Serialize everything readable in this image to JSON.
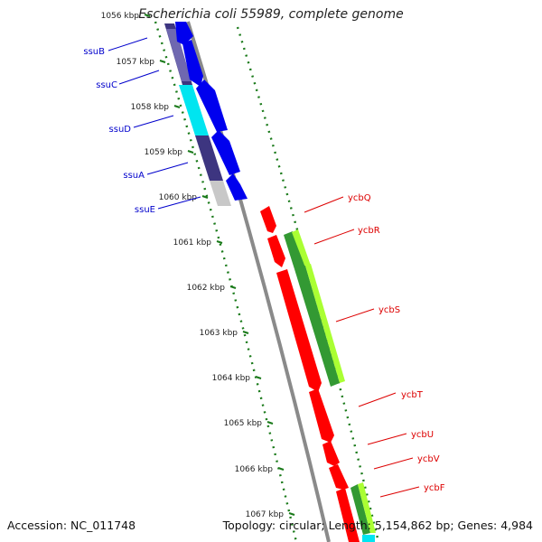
{
  "title": "Escherichia coli 55989, complete genome",
  "footer": {
    "accession": "Accession: NC_011748",
    "summary": "Topology: circular; Length: 5,154,862 bp; Genes: 4,984"
  },
  "colors": {
    "backbone": "#8a8a8a",
    "tick": "#1a7a1a",
    "left_label": "#0000cc",
    "right_label": "#dd0000",
    "cds_blue": "#0000ee",
    "cds_red": "#ff0000",
    "rna_green": "#339933",
    "rna_lime": "#aaff33",
    "track_navy": "#3d3580",
    "track_cyan": "#00e5f0",
    "track_grey": "#c8c8c8"
  },
  "ruler": {
    "unit": "kbp",
    "labels": [
      "1056 kbp",
      "1057 kbp",
      "1058 kbp",
      "1059 kbp",
      "1060 kbp",
      "1061 kbp",
      "1062 kbp",
      "1063 kbp",
      "1064 kbp",
      "1065 kbp",
      "1066 kbp",
      "1067 kbp"
    ]
  },
  "genes_left": [
    "ssuB",
    "ssuC",
    "ssuD",
    "ssuA",
    "ssuE"
  ],
  "genes_right": [
    "ycbQ",
    "ycbR",
    "ycbS",
    "ycbT",
    "ycbU",
    "ycbV",
    "ycbF"
  ]
}
